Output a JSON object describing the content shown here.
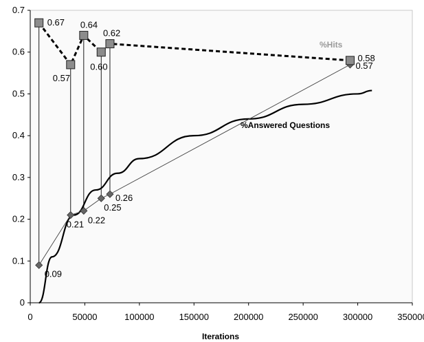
{
  "chart_data": {
    "type": "line",
    "title": "",
    "xlabel": "Iterations",
    "ylabel": "",
    "xlim": [
      0,
      350000
    ],
    "ylim": [
      0,
      0.7
    ],
    "x_ticks": [
      0,
      50000,
      100000,
      150000,
      200000,
      250000,
      300000,
      350000
    ],
    "x_tick_labels": [
      "0",
      "50000",
      "100000",
      "150000",
      "200000",
      "250000",
      "300000",
      "350000"
    ],
    "y_ticks": [
      0,
      0.1,
      0.2,
      0.3,
      0.4,
      0.5,
      0.6,
      0.7
    ],
    "y_tick_labels": [
      "0",
      "0.1",
      "0.2",
      "0.3",
      "0.4",
      "0.5",
      "0.6",
      "0.7"
    ],
    "grid": false,
    "legend": "none",
    "series": [
      {
        "name": "%Hits",
        "style": "dashed-squares",
        "color": "#000000",
        "marker_color": "#8c8c8c",
        "x": [
          8000,
          37000,
          49000,
          65000,
          73000,
          293000
        ],
        "values": [
          0.67,
          0.57,
          0.64,
          0.6,
          0.62,
          0.58
        ],
        "labels": [
          "0.67",
          "0.57",
          "0.64",
          "0.60",
          "0.62",
          "0.58"
        ]
      },
      {
        "name": "",
        "style": "thin-line-diamonds",
        "color": "#404040",
        "marker_color": "#666666",
        "x": [
          8000,
          37000,
          49000,
          65000,
          73000,
          293000
        ],
        "values": [
          0.09,
          0.21,
          0.22,
          0.25,
          0.26,
          0.57
        ],
        "labels": [
          "0.09",
          "0.21",
          "0.22",
          "0.25",
          "0.26",
          "0.57"
        ]
      },
      {
        "name": "%Answered Questions",
        "style": "thick-curve",
        "color": "#000000",
        "curve": "log-fit",
        "x": [
          8000,
          20000,
          40000,
          60000,
          80000,
          100000,
          150000,
          200000,
          250000,
          300000,
          313000
        ],
        "values": [
          0.0,
          0.11,
          0.21,
          0.27,
          0.31,
          0.345,
          0.4,
          0.44,
          0.475,
          0.5,
          0.508
        ]
      }
    ]
  }
}
